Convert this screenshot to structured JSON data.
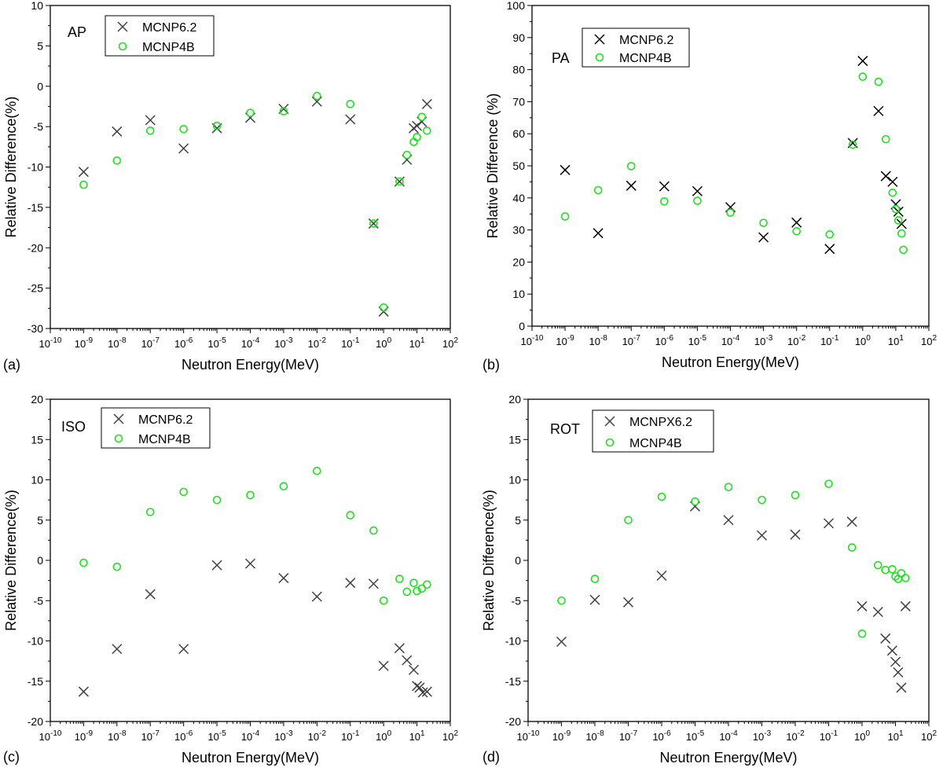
{
  "chart_data": [
    {
      "id": "a",
      "type": "scatter",
      "panel_label": "(a)",
      "title": "AP",
      "xlabel": "Neutron Energy(MeV)",
      "ylabel": "Relative Difference(%)",
      "xscale": "log",
      "xlim_exp": [
        -10,
        2
      ],
      "ylim": [
        -30,
        10
      ],
      "yticks": [
        -30,
        -25,
        -20,
        -15,
        -10,
        -5,
        0,
        5,
        10
      ],
      "legend_position": "top-left",
      "series": [
        {
          "name": "MCNP6.2",
          "marker": "x",
          "color": "#404040",
          "x": [
            1e-09,
            1e-08,
            1e-07,
            1e-06,
            1e-05,
            0.0001,
            0.001,
            0.01,
            0.1,
            0.5,
            1,
            3,
            5,
            8,
            10,
            14,
            20
          ],
          "y": [
            -10.6,
            -5.6,
            -4.2,
            -7.7,
            -5.2,
            -3.9,
            -2.8,
            -1.9,
            -4.1,
            -17.0,
            -27.9,
            -11.8,
            -9.1,
            -5.2,
            -4.9,
            -4.4,
            -2.2
          ]
        },
        {
          "name": "MCNP4B",
          "marker": "o",
          "color": "#22dd22",
          "x": [
            1e-09,
            1e-08,
            1e-07,
            1e-06,
            1e-05,
            0.0001,
            0.001,
            0.01,
            0.1,
            0.5,
            1,
            3,
            5,
            8,
            10,
            14,
            20
          ],
          "y": [
            -12.2,
            -9.2,
            -5.5,
            -5.3,
            -4.9,
            -3.3,
            -3.1,
            -1.2,
            -2.2,
            -17.0,
            -27.4,
            -11.8,
            -8.5,
            -6.9,
            -6.3,
            -3.8,
            -5.5
          ]
        }
      ]
    },
    {
      "id": "b",
      "type": "scatter",
      "panel_label": "(b)",
      "title": "PA",
      "xlabel": "Neutron Energy(MeV)",
      "ylabel": "Relative Difference (%)",
      "xscale": "log",
      "xlim_exp": [
        -10,
        2
      ],
      "ylim": [
        0,
        100
      ],
      "yticks": [
        0,
        10,
        20,
        30,
        40,
        50,
        60,
        70,
        80,
        90,
        100
      ],
      "legend_position": "top-center",
      "series": [
        {
          "name": "MCNP6.2",
          "marker": "x",
          "color": "#000000",
          "x": [
            1e-09,
            1e-08,
            1e-07,
            1e-06,
            1e-05,
            0.0001,
            0.001,
            0.01,
            0.1,
            0.5,
            1,
            3,
            5,
            8,
            10,
            12,
            15
          ],
          "y": [
            48.7,
            29.0,
            43.8,
            43.6,
            42.1,
            37.1,
            27.7,
            32.3,
            24.1,
            57.1,
            82.7,
            67.1,
            46.8,
            45.0,
            38.0,
            35.7,
            31.9
          ]
        },
        {
          "name": "MCNP4B",
          "marker": "o",
          "color": "#22dd22",
          "x": [
            1e-09,
            1e-08,
            1e-07,
            1e-06,
            1e-05,
            0.0001,
            0.001,
            0.01,
            0.1,
            0.5,
            1,
            3,
            5,
            8,
            10,
            12,
            15,
            17
          ],
          "y": [
            34.2,
            42.4,
            49.9,
            38.9,
            39.1,
            35.4,
            32.2,
            29.6,
            28.6,
            56.6,
            77.8,
            76.2,
            58.3,
            41.6,
            36.5,
            33.0,
            28.9,
            23.8
          ]
        }
      ]
    },
    {
      "id": "c",
      "type": "scatter",
      "panel_label": "(c)",
      "title": "ISO",
      "xlabel": "Neutron Energy(MeV)",
      "ylabel": "Relative Difference(%)",
      "xscale": "log",
      "xlim_exp": [
        -10,
        2
      ],
      "ylim": [
        -20,
        20
      ],
      "yticks": [
        -20,
        -15,
        -10,
        -5,
        0,
        5,
        10,
        15,
        20
      ],
      "legend_position": "top-left",
      "series": [
        {
          "name": "MCNP6.2",
          "marker": "x",
          "color": "#404040",
          "x": [
            1e-09,
            1e-08,
            1e-07,
            1e-06,
            1e-05,
            0.0001,
            0.001,
            0.01,
            0.1,
            0.5,
            1,
            3,
            5,
            8,
            10,
            12,
            15,
            20
          ],
          "y": [
            -16.3,
            -11.0,
            -4.2,
            -11.0,
            -0.6,
            -0.4,
            -2.2,
            -4.5,
            -2.8,
            -2.9,
            -13.1,
            -10.9,
            -12.4,
            -13.6,
            -15.6,
            -15.8,
            -16.4,
            -16.3
          ]
        },
        {
          "name": "MCNP4B",
          "marker": "o",
          "color": "#22dd22",
          "x": [
            1e-09,
            1e-08,
            1e-07,
            1e-06,
            1e-05,
            0.0001,
            0.001,
            0.01,
            0.1,
            0.5,
            1,
            3,
            5,
            8,
            10,
            14,
            20
          ],
          "y": [
            -0.3,
            -0.8,
            6.0,
            8.5,
            7.5,
            8.1,
            9.2,
            11.1,
            5.6,
            3.7,
            -5.0,
            -2.3,
            -3.9,
            -2.8,
            -3.8,
            -3.5,
            -3.0
          ]
        }
      ]
    },
    {
      "id": "d",
      "type": "scatter",
      "panel_label": "(d)",
      "title": "ROT",
      "xlabel": "Neutron Energy(MeV)",
      "ylabel": "Relative Difference(%)",
      "xscale": "log",
      "xlim_exp": [
        -10,
        2
      ],
      "ylim": [
        -20,
        20
      ],
      "yticks": [
        -20,
        -15,
        -10,
        -5,
        0,
        5,
        10,
        15,
        20
      ],
      "legend_position": "top-center",
      "series": [
        {
          "name": "MCNPX6.2",
          "marker": "x",
          "color": "#404040",
          "x": [
            1e-09,
            1e-08,
            1e-07,
            1e-06,
            1e-05,
            0.0001,
            0.001,
            0.01,
            0.1,
            0.5,
            1,
            3,
            5,
            8,
            10,
            12,
            15,
            20
          ],
          "y": [
            -10.1,
            -4.9,
            -5.2,
            -1.9,
            6.7,
            5.0,
            3.1,
            3.2,
            4.6,
            4.8,
            -5.7,
            -6.4,
            -9.7,
            -11.2,
            -12.6,
            -13.9,
            -15.8,
            -5.7
          ]
        },
        {
          "name": "MCNP4B",
          "marker": "o",
          "color": "#22dd22",
          "x": [
            1e-09,
            1e-08,
            1e-07,
            1e-06,
            1e-05,
            0.0001,
            0.001,
            0.01,
            0.1,
            0.5,
            1,
            3,
            5,
            8,
            10,
            12,
            15,
            20
          ],
          "y": [
            -5.0,
            -2.3,
            5.0,
            7.9,
            7.3,
            9.1,
            7.5,
            8.1,
            9.5,
            1.6,
            -9.1,
            -0.6,
            -1.2,
            -1.1,
            -2.0,
            -2.3,
            -1.6,
            -2.2
          ]
        }
      ]
    }
  ]
}
